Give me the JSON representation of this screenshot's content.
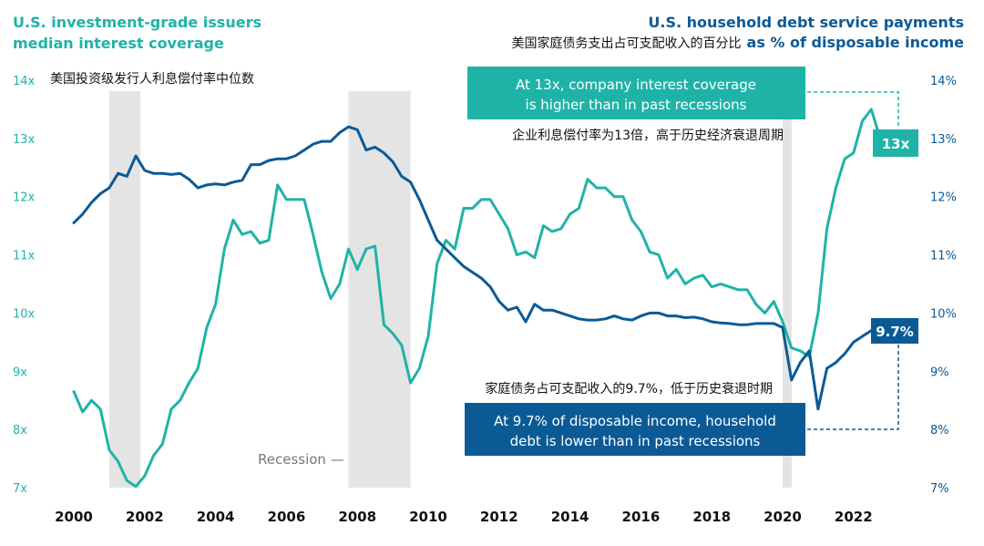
{
  "colors": {
    "coverage": "#1fb3a8",
    "debt": "#0b5a96",
    "recession": "#e4e4e4"
  },
  "headings": {
    "left_title_line1": "U.S. investment-grade issuers",
    "left_title_line2": "median interest coverage",
    "left_subtitle": "美国投资级发行人利息偿付率中位数",
    "right_title_line1": "U.S. household debt service payments",
    "right_subtitle_cn": "美国家庭债务支出占可支配收入的百分比",
    "right_subtitle_en": "as % of disposable income"
  },
  "annotations": {
    "coverage_box_line1": "At 13x, company interest coverage",
    "coverage_box_line2": "is higher than in past recessions",
    "coverage_cn": "企业利息偿付率为13倍，高于历史经济衰退周期",
    "coverage_badge": "13x",
    "debt_cn": "家庭债务占可支配收入的9.7%，低于历史衰退时期",
    "debt_box_line1": "At 9.7% of disposable income, household",
    "debt_box_line2": "debt is lower than in past recessions",
    "debt_badge": "9.7%",
    "recession_label": "Recession —"
  },
  "chart_data": {
    "type": "line",
    "x_range": [
      2000,
      2023.25
    ],
    "x_ticks": [
      "2000",
      "2002",
      "2004",
      "2006",
      "2008",
      "2010",
      "2012",
      "2014",
      "2016",
      "2018",
      "2020",
      "2022"
    ],
    "y_left": {
      "label": "median interest coverage",
      "range": [
        7,
        14
      ],
      "ticks": [
        "14x",
        "13x",
        "12x",
        "11x",
        "10x",
        "9x",
        "8x",
        "7x"
      ]
    },
    "y_right": {
      "label": "household debt service as % of disposable income",
      "range": [
        7,
        14
      ],
      "ticks": [
        "14%",
        "13%",
        "12%",
        "11%",
        "10%",
        "9%",
        "8%",
        "7%"
      ]
    },
    "recessions": [
      [
        2001.0,
        2001.88
      ],
      [
        2007.75,
        2009.5
      ],
      [
        2020.0,
        2020.25
      ]
    ],
    "series": [
      {
        "name": "U.S. investment-grade issuers median interest coverage",
        "axis": "left",
        "x": [
          2000.0,
          2000.25,
          2000.5,
          2000.75,
          2001.0,
          2001.25,
          2001.5,
          2001.75,
          2002.0,
          2002.25,
          2002.5,
          2002.75,
          2003.0,
          2003.25,
          2003.5,
          2003.75,
          2004.0,
          2004.25,
          2004.5,
          2004.75,
          2005.0,
          2005.25,
          2005.5,
          2005.75,
          2006.0,
          2006.25,
          2006.5,
          2006.75,
          2007.0,
          2007.25,
          2007.5,
          2007.75,
          2008.0,
          2008.25,
          2008.5,
          2008.75,
          2009.0,
          2009.25,
          2009.5,
          2009.75,
          2010.0,
          2010.25,
          2010.5,
          2010.75,
          2011.0,
          2011.25,
          2011.5,
          2011.75,
          2012.0,
          2012.25,
          2012.5,
          2012.75,
          2013.0,
          2013.25,
          2013.5,
          2013.75,
          2014.0,
          2014.25,
          2014.5,
          2014.75,
          2015.0,
          2015.25,
          2015.5,
          2015.75,
          2016.0,
          2016.25,
          2016.5,
          2016.75,
          2017.0,
          2017.25,
          2017.5,
          2017.75,
          2018.0,
          2018.25,
          2018.5,
          2018.75,
          2019.0,
          2019.25,
          2019.5,
          2019.75,
          2020.0,
          2020.25,
          2020.5,
          2020.75,
          2021.0,
          2021.25,
          2021.5,
          2021.75,
          2022.0,
          2022.25,
          2022.5,
          2022.75
        ],
        "values": [
          8.65,
          8.3,
          8.5,
          8.35,
          7.65,
          7.45,
          7.12,
          7.02,
          7.2,
          7.55,
          7.75,
          8.35,
          8.5,
          8.8,
          9.05,
          9.75,
          10.15,
          11.1,
          11.6,
          11.35,
          11.4,
          11.2,
          11.25,
          12.2,
          11.95,
          11.95,
          11.95,
          11.35,
          10.7,
          10.25,
          10.5,
          11.1,
          10.75,
          11.1,
          11.15,
          9.8,
          9.65,
          9.45,
          8.8,
          9.05,
          9.6,
          10.85,
          11.25,
          11.1,
          11.8,
          11.8,
          11.95,
          11.95,
          11.7,
          11.45,
          11.0,
          11.05,
          10.95,
          11.5,
          11.4,
          11.45,
          11.7,
          11.8,
          12.3,
          12.15,
          12.15,
          12.0,
          12.0,
          11.6,
          11.4,
          11.05,
          11.0,
          10.6,
          10.75,
          10.5,
          10.6,
          10.65,
          10.45,
          10.5,
          10.45,
          10.4,
          10.4,
          10.15,
          10.0,
          10.2,
          9.85,
          9.4,
          9.35,
          9.25,
          10.0,
          11.45,
          12.15,
          12.65,
          12.75,
          13.3,
          13.5,
          13.0
        ]
      },
      {
        "name": "U.S. household debt service payments as % of disposable income",
        "axis": "right",
        "x": [
          2000.0,
          2000.25,
          2000.5,
          2000.75,
          2001.0,
          2001.25,
          2001.5,
          2001.75,
          2002.0,
          2002.25,
          2002.5,
          2002.75,
          2003.0,
          2003.25,
          2003.5,
          2003.75,
          2004.0,
          2004.25,
          2004.5,
          2004.75,
          2005.0,
          2005.25,
          2005.5,
          2005.75,
          2006.0,
          2006.25,
          2006.5,
          2006.75,
          2007.0,
          2007.25,
          2007.5,
          2007.75,
          2008.0,
          2008.25,
          2008.5,
          2008.75,
          2009.0,
          2009.25,
          2009.5,
          2009.75,
          2010.0,
          2010.25,
          2010.5,
          2010.75,
          2011.0,
          2011.25,
          2011.5,
          2011.75,
          2012.0,
          2012.25,
          2012.5,
          2012.75,
          2013.0,
          2013.25,
          2013.5,
          2013.75,
          2014.0,
          2014.25,
          2014.5,
          2014.75,
          2015.0,
          2015.25,
          2015.5,
          2015.75,
          2016.0,
          2016.25,
          2016.5,
          2016.75,
          2017.0,
          2017.25,
          2017.5,
          2017.75,
          2018.0,
          2018.25,
          2018.5,
          2018.75,
          2019.0,
          2019.25,
          2019.5,
          2019.75,
          2020.0,
          2020.25,
          2020.5,
          2020.75,
          2021.0,
          2021.25,
          2021.5,
          2021.75,
          2022.0,
          2022.25,
          2022.5,
          2022.75
        ],
        "values": [
          11.55,
          11.7,
          11.9,
          12.05,
          12.15,
          12.4,
          12.35,
          12.7,
          12.45,
          12.4,
          12.4,
          12.38,
          12.4,
          12.3,
          12.15,
          12.2,
          12.22,
          12.2,
          12.25,
          12.28,
          12.55,
          12.55,
          12.62,
          12.65,
          12.65,
          12.7,
          12.8,
          12.9,
          12.95,
          12.95,
          13.1,
          13.2,
          13.15,
          12.8,
          12.85,
          12.75,
          12.6,
          12.35,
          12.25,
          11.95,
          11.6,
          11.25,
          11.1,
          10.95,
          10.8,
          10.7,
          10.6,
          10.45,
          10.2,
          10.05,
          10.1,
          9.85,
          10.15,
          10.05,
          10.05,
          10.0,
          9.95,
          9.9,
          9.88,
          9.88,
          9.9,
          9.95,
          9.9,
          9.88,
          9.95,
          10.0,
          10.0,
          9.95,
          9.95,
          9.92,
          9.93,
          9.9,
          9.85,
          9.83,
          9.82,
          9.8,
          9.8,
          9.82,
          9.82,
          9.82,
          9.75,
          8.85,
          9.15,
          9.35,
          8.35,
          9.05,
          9.15,
          9.3,
          9.5,
          9.6,
          9.7,
          9.75
        ]
      }
    ]
  }
}
